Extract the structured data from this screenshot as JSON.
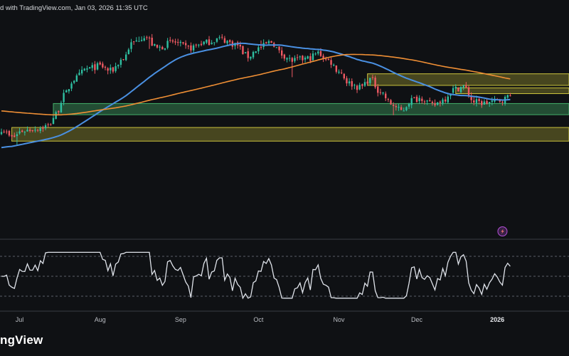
{
  "header": {
    "text": "d with TradingView.com, Jan 03, 2026 11:35 UTC"
  },
  "footer": {
    "logo_text": "ngView"
  },
  "colors": {
    "background": "#0f1114",
    "up": "#2fbfa1",
    "down": "#f05a63",
    "ma_fast": "#4a90e2",
    "ma_slow": "#ef8f35",
    "zone_yellow": "#c9c23c",
    "zone_green": "#44b06a",
    "oscillator": "#dfe3ea",
    "event_icon": "#b44fd8"
  },
  "chart_data": {
    "type": "candlestick",
    "x_axis": {
      "month_labels": [
        {
          "label": "Jul",
          "index": 7,
          "bold": false
        },
        {
          "label": "Aug",
          "index": 38,
          "bold": false
        },
        {
          "label": "Sep",
          "index": 69,
          "bold": false
        },
        {
          "label": "Oct",
          "index": 99,
          "bold": false
        },
        {
          "label": "Nov",
          "index": 130,
          "bold": false
        },
        {
          "label": "Dec",
          "index": 160,
          "bold": false
        },
        {
          "label": "2026",
          "index": 191,
          "bold": true
        }
      ]
    },
    "price_scale": {
      "min": 80,
      "max": 130,
      "note": "arbitrary relative scale; no price labels printed"
    },
    "zones": [
      {
        "name": "upper-resistance",
        "color": "yellow",
        "x_start_index": 141,
        "x_end_index": 230,
        "low": 114.5,
        "high": 117.3
      },
      {
        "name": "minor-resistance",
        "color": "yellow",
        "x_start_index": 175,
        "x_end_index": 230,
        "low": 112.5,
        "high": 113.9
      },
      {
        "name": "support",
        "color": "green",
        "x_start_index": 20,
        "x_end_index": 230,
        "low": 107.4,
        "high": 110.1
      },
      {
        "name": "lower-support",
        "color": "yellow",
        "x_start_index": 4,
        "x_end_index": 230,
        "low": 101.0,
        "high": 104.3
      }
    ],
    "ma_fast": {
      "name": "",
      "values_every_index": "computed"
    },
    "ma_slow": {
      "name": "",
      "values_every_index": "computed"
    },
    "oscillator": {
      "type": "line",
      "reference_levels": [
        70,
        50,
        30
      ]
    },
    "event_marker": {
      "index": 193
    }
  }
}
